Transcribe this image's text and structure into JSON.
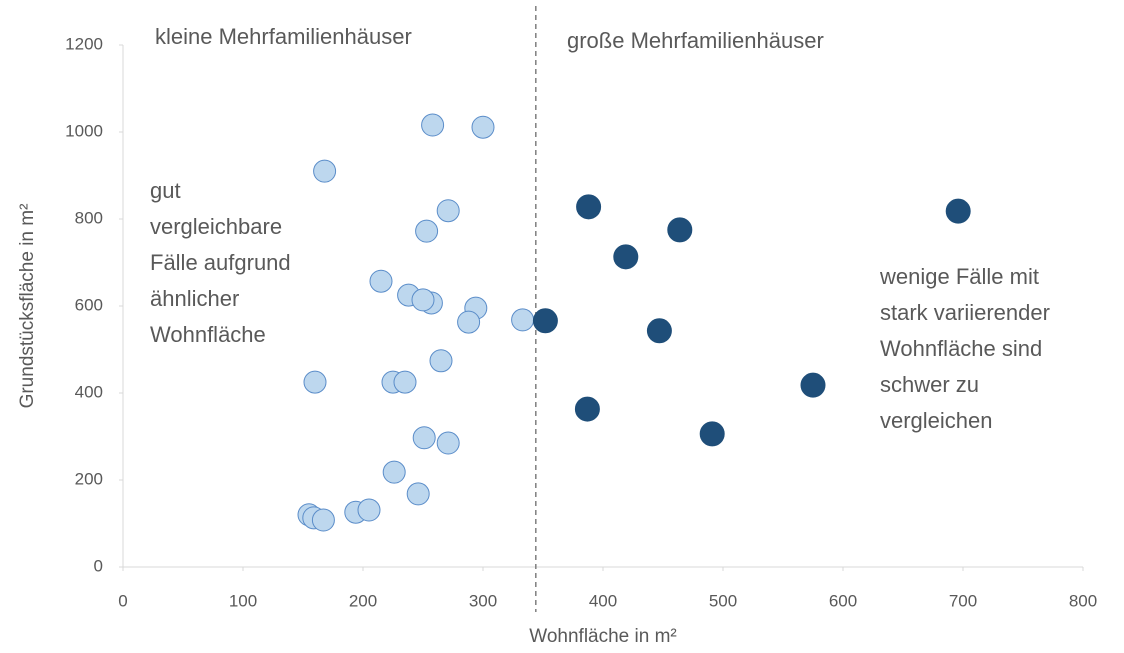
{
  "chart_data": {
    "type": "scatter",
    "xlabel": "Wohnfläche in m²",
    "ylabel": "Grundstücksfläche in m²",
    "xlim": [
      0,
      800
    ],
    "xticks": [
      0,
      100,
      200,
      300,
      400,
      500,
      600,
      700,
      800
    ],
    "ylim": [
      0,
      1200
    ],
    "yticks": [
      0,
      200,
      400,
      600,
      800,
      1000,
      1200
    ],
    "vline": 344,
    "series": [
      {
        "color": "#bdd7ee",
        "stroke": "#5b8dc9",
        "x": [
          258,
          300,
          168,
          271,
          253,
          215,
          238,
          257,
          250,
          294,
          288,
          333,
          265,
          160,
          225,
          235,
          251,
          271,
          226,
          246,
          155,
          159,
          167,
          194,
          205
        ],
        "values": [
          1016,
          1011,
          910,
          819,
          772,
          657,
          625,
          607,
          614,
          595,
          563,
          568,
          474,
          425,
          425,
          425,
          297,
          285,
          218,
          168,
          120,
          113,
          108,
          126,
          131
        ]
      },
      {
        "color": "#1f4e79",
        "stroke": "#1f4e79",
        "x": [
          388,
          464,
          419,
          696,
          352,
          447,
          575,
          387,
          491
        ],
        "values": [
          828,
          775,
          713,
          818,
          566,
          543,
          418,
          363,
          306
        ]
      }
    ],
    "annotations": [
      {
        "lines": [
          "kleine Mehrfamilienhäuser"
        ]
      },
      {
        "lines": [
          "große Mehrfamilienhäuser"
        ]
      },
      {
        "lines": [
          "gut",
          "vergleichbare",
          "Fälle aufgrund",
          "ähnlicher",
          "Wohnfläche"
        ]
      },
      {
        "lines": [
          "wenige Fälle mit",
          "stark variierender",
          "Wohnfläche sind",
          "schwer zu",
          "vergleichen"
        ]
      }
    ]
  }
}
